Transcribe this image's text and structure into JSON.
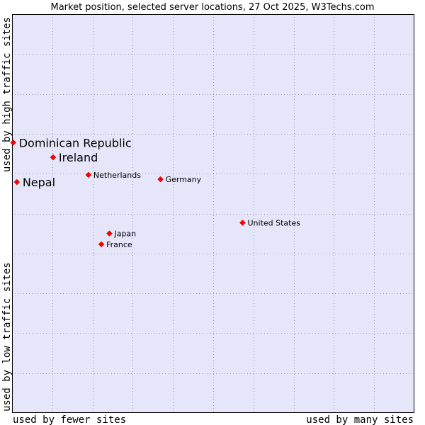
{
  "chart_data": {
    "type": "scatter",
    "title": "Market position, selected server locations, 27 Oct 2025, W3Techs.com",
    "xlabel_left": "used by fewer sites",
    "xlabel_right": "used by many sites",
    "ylabel_top": "used by high traffic sites",
    "ylabel_bottom": "used by low traffic sites",
    "xlim": [
      0,
      100
    ],
    "ylim": [
      0,
      100
    ],
    "grid": true,
    "colors": {
      "plot_bg": "#e6e6fa",
      "grid": "#9a9ab4",
      "marker": "#ff0000",
      "frame": "#000000"
    },
    "points": [
      {
        "name": "Dominican Republic",
        "x": 0.3,
        "y": 67.8,
        "emphasis": true
      },
      {
        "name": "Ireland",
        "x": 10.2,
        "y": 64.1,
        "emphasis": true
      },
      {
        "name": "Nepal",
        "x": 1.2,
        "y": 57.9,
        "emphasis": true
      },
      {
        "name": "Netherlands",
        "x": 19.0,
        "y": 59.7,
        "emphasis": false
      },
      {
        "name": "Germany",
        "x": 36.9,
        "y": 58.6,
        "emphasis": false
      },
      {
        "name": "United States",
        "x": 57.3,
        "y": 47.7,
        "emphasis": false
      },
      {
        "name": "Japan",
        "x": 24.2,
        "y": 45.0,
        "emphasis": false
      },
      {
        "name": "France",
        "x": 22.2,
        "y": 42.3,
        "emphasis": false
      }
    ]
  }
}
